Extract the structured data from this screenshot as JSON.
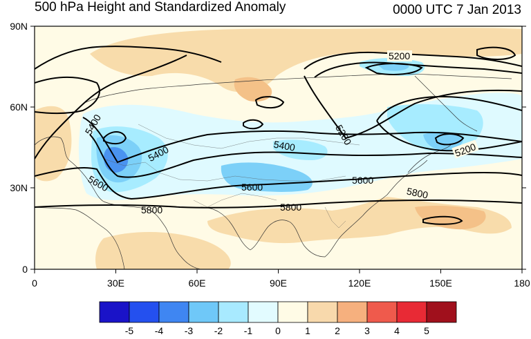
{
  "header": {
    "title": "500 hPa Height and Standardized Anomaly",
    "datetime": "0000 UTC 7 Jan 2013"
  },
  "map": {
    "lat_ticks": [
      "90N",
      "60N",
      "30N",
      "0"
    ],
    "lon_ticks": [
      "0",
      "30E",
      "60E",
      "90E",
      "120E",
      "150E",
      "180"
    ],
    "contour_labels": [
      {
        "text": "5200",
        "role": "contour-label-5200"
      },
      {
        "text": "5400",
        "role": "contour-label-5400"
      },
      {
        "text": "5600",
        "role": "contour-label-5600"
      },
      {
        "text": "5800",
        "role": "contour-label-5800"
      }
    ],
    "colors": {
      "neutral": "#fffbe6",
      "pos1": "#f8dcab",
      "pos2": "#f4c188",
      "neg1": "#dffaff",
      "neg2": "#a7ecff",
      "neg3": "#7cd0f8",
      "neg4": "#4a93f0"
    }
  },
  "colorbar": {
    "labels": [
      "-5",
      "-4",
      "-3",
      "-2",
      "-1",
      "0",
      "1",
      "2",
      "3",
      "4",
      "5"
    ],
    "colors": [
      "#1a13c8",
      "#2450ef",
      "#3f86f2",
      "#6fc8f8",
      "#a8eaff",
      "#e2fbff",
      "#fffbe6",
      "#f8d9ac",
      "#f6b07e",
      "#ef5a4c",
      "#e82a35",
      "#a0101c"
    ]
  }
}
